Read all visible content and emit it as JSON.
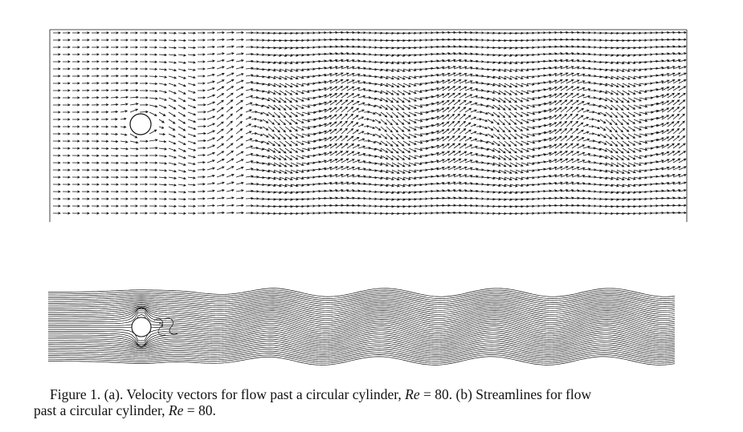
{
  "caption": {
    "lines": [
      [
        "Figure 1. (a). Velocity vectors for flow past a circular cylinder, ",
        "Re",
        " = 80. (b) Streamlines for flow"
      ],
      [
        "past a circular cylinder, ",
        "Re",
        " = 80."
      ]
    ]
  }
}
